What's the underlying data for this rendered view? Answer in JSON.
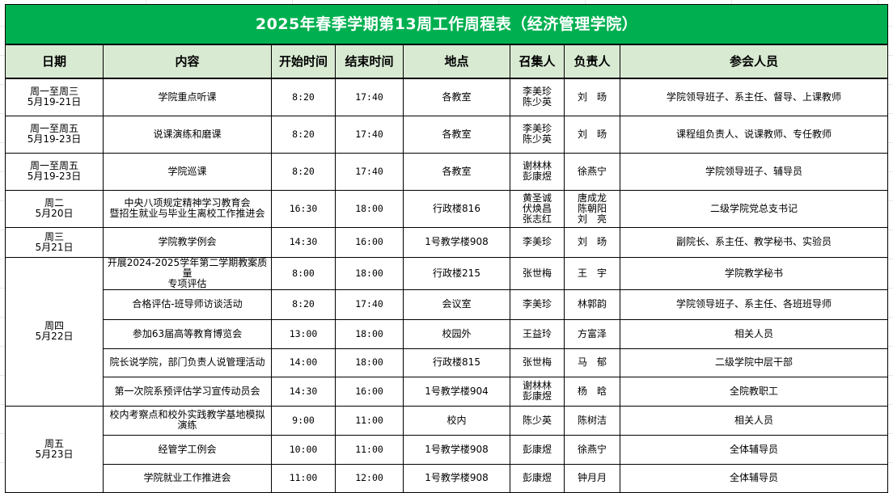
{
  "title": "2025年春季学期第13周工作周程表（经济管理学院）",
  "colors": {
    "title_bg": "#00b050",
    "header_bg": "#d9ead3"
  },
  "headers": [
    "日期",
    "内容",
    "开始时间",
    "结束时间",
    "地点",
    "召集人",
    "负责人",
    "参会人员"
  ],
  "groups": [
    {
      "date": "周一至周三\n5月19-21日",
      "rows": [
        {
          "content": "学院重点听课",
          "start": "8:20",
          "end": "17:40",
          "place": "各教室",
          "convener": "李美珍\n陈少英",
          "owner": "刘　旸",
          "attendees": "学院领导班子、系主任、督导、上课教师"
        }
      ]
    },
    {
      "date": "周一至周五\n5月19-23日",
      "rows": [
        {
          "content": "说课演练和磨课",
          "start": "8:20",
          "end": "17:40",
          "place": "各教室",
          "convener": "李美珍\n陈少英",
          "owner": "刘　旸",
          "attendees": "课程组负责人、说课教师、专任教师"
        }
      ]
    },
    {
      "date": "周一至周五\n5月19-23日",
      "rows": [
        {
          "content": "学院巡课",
          "start": "8:20",
          "end": "17:40",
          "place": "各教室",
          "convener": "谢林林\n彭康煜",
          "owner": "徐燕宁",
          "attendees": "学院领导班子、辅导员"
        }
      ]
    },
    {
      "date": "周二\n5月20日",
      "rows": [
        {
          "content": "中央八项规定精神学习教育会\n暨招生就业与毕业生离校工作推进会",
          "start": "16:30",
          "end": "18:00",
          "place": "行政楼816",
          "convener": "黄圣诚\n伏焕昌\n张志红",
          "owner": "唐成龙\n陈朝阳\n刘　亮",
          "attendees": "二级学院党总支书记"
        }
      ]
    },
    {
      "date": "周三\n5月21日",
      "rows": [
        {
          "content": "学院教学例会",
          "start": "14:30",
          "end": "16:00",
          "place": "1号教学楼908",
          "convener": "李美珍",
          "owner": "刘　旸",
          "attendees": "副院长、系主任、教学秘书、实验员"
        }
      ]
    },
    {
      "date": "周四\n5月22日",
      "rows": [
        {
          "content": "开展2024-2025学年第二学期教案质量\n专项评估",
          "start": "8:00",
          "end": "18:00",
          "place": "行政楼215",
          "convener": "张世梅",
          "owner": "王　宇",
          "attendees": "学院教学秘书"
        },
        {
          "content": "合格评估-班导师访谈活动",
          "start": "8:20",
          "end": "17:40",
          "place": "会议室",
          "convener": "李美珍",
          "owner": "林郭韵",
          "attendees": "学院领导班子、系主任、各班班导师"
        },
        {
          "content": "参加63届高等教育博览会",
          "start": "13:00",
          "end": "18:00",
          "place": "校园外",
          "convener": "王益玲",
          "owner": "方富泽",
          "attendees": "相关人员"
        },
        {
          "content": "院长说学院，部门负责人说管理活动",
          "start": "14:00",
          "end": "18:00",
          "place": "行政楼815",
          "convener": "张世梅",
          "owner": "马　郁",
          "attendees": "二级学院中层干部"
        },
        {
          "content": "第一次院系预评估学习宣传动员会",
          "start": "14:30",
          "end": "16:00",
          "place": "1号教学楼904",
          "convener": "谢林林\n彭康煜",
          "owner": "杨　晗",
          "attendees": "全院教职工"
        }
      ]
    },
    {
      "date": "周五\n5月23日",
      "rows": [
        {
          "content": "校内考察点和校外实践教学基地模拟\n演练",
          "start": "9:00",
          "end": "11:00",
          "place": "校内",
          "convener": "陈少英",
          "owner": "陈树洁",
          "attendees": "相关人员"
        },
        {
          "content": "经管学工例会",
          "start": "10:00",
          "end": "11:00",
          "place": "1号教学楼908",
          "convener": "彭康煜",
          "owner": "徐燕宁",
          "attendees": "全体辅导员"
        },
        {
          "content": "学院就业工作推进会",
          "start": "11:00",
          "end": "12:00",
          "place": "1号教学楼908",
          "convener": "彭康煜",
          "owner": "钟月月",
          "attendees": "全体辅导员"
        }
      ]
    }
  ]
}
